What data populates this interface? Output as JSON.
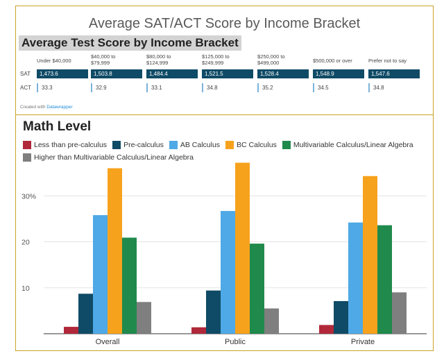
{
  "header": {
    "title": "Average SAT/ACT Score by Income Bracket",
    "subtitle": "Average Test Score by Income Bracket"
  },
  "income_table": {
    "columns": [
      "Under $40,000",
      "$40,000 to\n$79,999",
      "$80,000 to\n$124,999",
      "$125,000 to\n$249,999",
      "$250,000 to\n$499,000",
      "$500,000 or over",
      "Prefer not to say"
    ],
    "rows": [
      {
        "label": "SAT",
        "values": [
          "1,473.6",
          "1,503.8",
          "1,484.4",
          "1,521.5",
          "1,528.4",
          "1,548.9",
          "1,547.6"
        ]
      },
      {
        "label": "ACT",
        "values": [
          "33.3",
          "32.9",
          "33.1",
          "34.8",
          "35.2",
          "34.5",
          "34.8"
        ]
      }
    ],
    "credit_prefix": "Created with ",
    "credit_link": "Datawrapper"
  },
  "chart_data": {
    "type": "bar",
    "title": "Math Level",
    "categories": [
      "Overall",
      "Public",
      "Private"
    ],
    "series": [
      {
        "name": "Less than pre-calculus",
        "color": "#b0283a",
        "values": [
          1.5,
          1.4,
          1.9
        ]
      },
      {
        "name": "Pre-calculus",
        "color": "#0f4b66",
        "values": [
          8.7,
          9.4,
          7.1
        ]
      },
      {
        "name": "AB Calculus",
        "color": "#4ea9e6",
        "values": [
          25.8,
          26.7,
          24.2
        ]
      },
      {
        "name": "BC Calculus",
        "color": "#f7a21c",
        "values": [
          36.0,
          37.2,
          34.3
        ]
      },
      {
        "name": "Multivariable Calculus/Linear Algebra",
        "color": "#1f8a4c",
        "values": [
          20.9,
          19.6,
          23.6
        ]
      },
      {
        "name": "Higher than Multivariable Calculus/Linear Algebra",
        "color": "#7f7f7f",
        "values": [
          6.9,
          5.5,
          9.0
        ]
      }
    ],
    "ylim": [
      0,
      40
    ],
    "yticks": [
      10,
      20,
      30
    ],
    "ytick_labels": [
      "10",
      "20",
      "30%"
    ],
    "grid": true,
    "legend": "top-left"
  }
}
